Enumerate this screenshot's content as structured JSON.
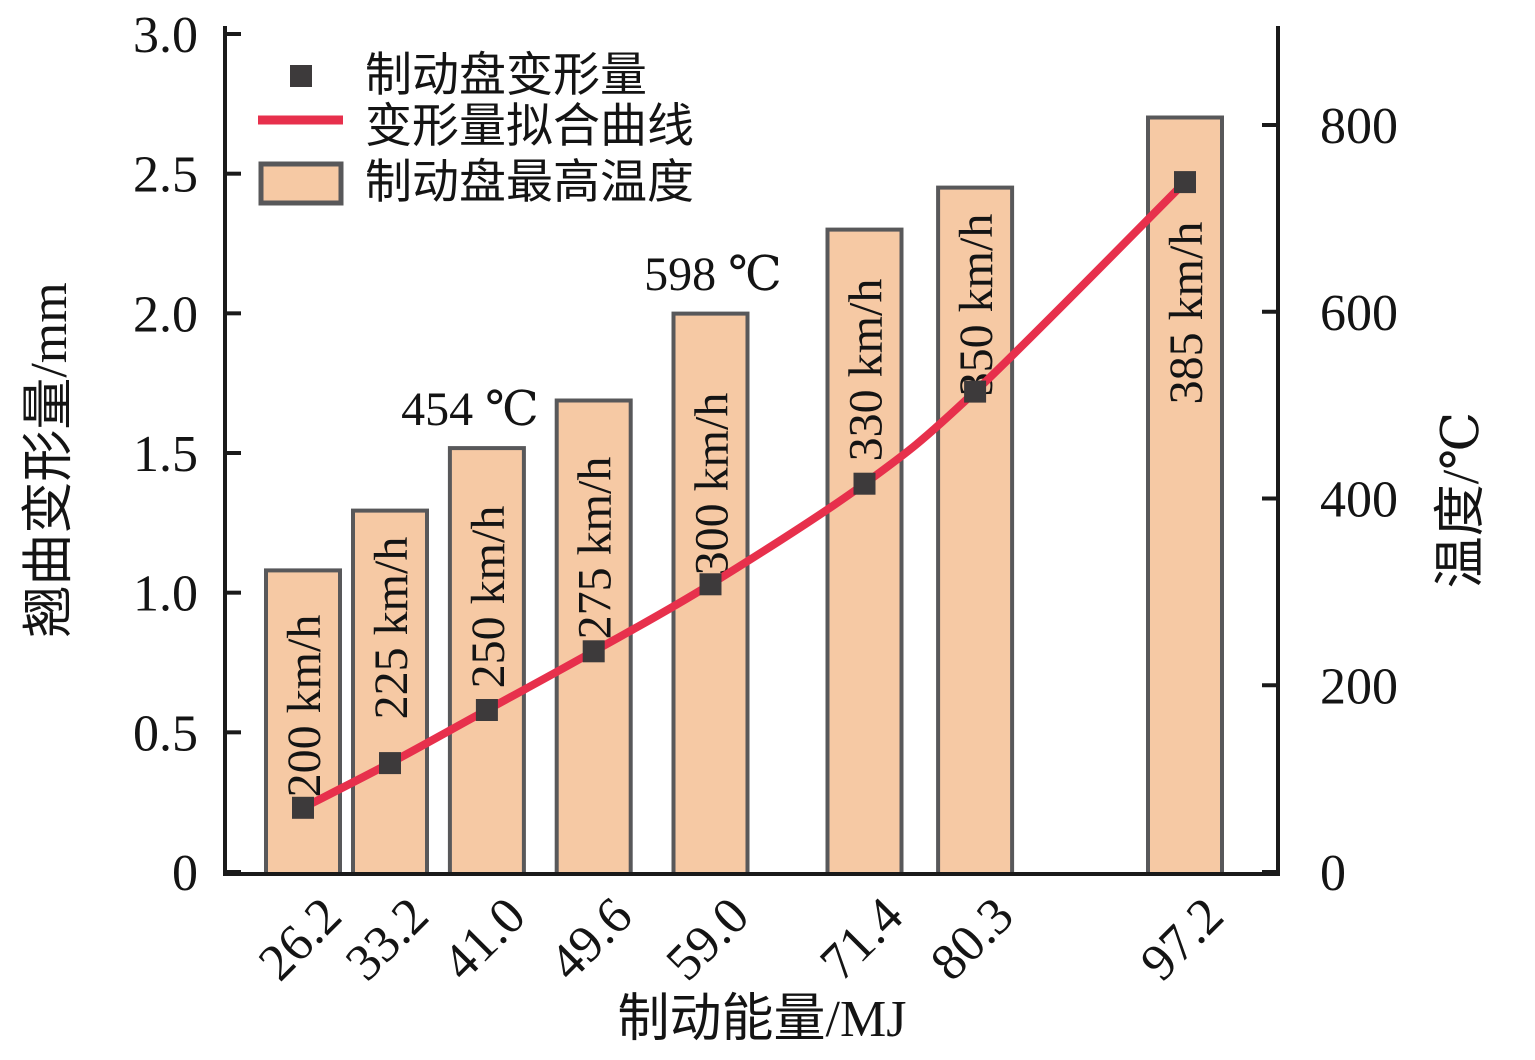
{
  "figure": {
    "xlabel": "制动能量/MJ",
    "left_axis_label": "翘曲变形量/mm",
    "right_axis_label": "温度/℃"
  },
  "legend": {
    "position": "top-left",
    "items": [
      {
        "swatch": "square-marker",
        "label": "制动盘变形量"
      },
      {
        "swatch": "red-line",
        "label": "变形量拟合曲线"
      },
      {
        "swatch": "filled-bar",
        "label": "制动盘最高温度"
      }
    ]
  },
  "colors": {
    "bar_fill": "#f6c9a4",
    "bar_border": "#58585a",
    "fit_line": "#e7304c",
    "marker": "#3d3a3b",
    "axis": "#1a1a1a",
    "text": "#141414"
  },
  "chart_data": {
    "type": "combo",
    "title": "",
    "xlabel": "制动能量/MJ",
    "x": [
      26.2,
      33.2,
      41.0,
      49.6,
      59.0,
      71.4,
      80.3,
      97.2
    ],
    "x_tick_labels": [
      "26.2",
      "33.2",
      "41.0",
      "49.6",
      "59.0",
      "71.4",
      "80.3",
      "97.2"
    ],
    "left_axis": {
      "label": "翘曲变形量/mm",
      "ticks": [
        0,
        0.5,
        1.0,
        1.5,
        2.0,
        2.5,
        3.0
      ],
      "tick_labels": [
        "0",
        "0.5",
        "1.0",
        "1.5",
        "2.0",
        "2.5",
        "3.0"
      ],
      "range": [
        0,
        3.0
      ]
    },
    "right_axis": {
      "label": "温度/℃",
      "ticks": [
        0,
        200,
        400,
        600,
        800
      ],
      "tick_labels": [
        "0",
        "200",
        "400",
        "600",
        "800"
      ],
      "range": [
        0,
        900
      ]
    },
    "series": [
      {
        "name": "制动盘变形量",
        "type": "scatter",
        "axis": "left",
        "unit": "mm",
        "marker": "square",
        "color": "#3d3a3b",
        "values": [
          0.23,
          0.39,
          0.58,
          0.79,
          1.03,
          1.39,
          1.72,
          2.47
        ]
      },
      {
        "name": "变形量拟合曲线",
        "type": "line",
        "axis": "left",
        "unit": "mm",
        "color": "#e7304c",
        "values": [
          0.23,
          0.39,
          0.58,
          0.79,
          1.03,
          1.39,
          1.72,
          2.47
        ]
      },
      {
        "name": "制动盘最高温度",
        "type": "bar",
        "axis": "right",
        "unit": "℃",
        "fill": "#f6c9a4",
        "border": "#58585a",
        "values": [
          323,
          387,
          454,
          505,
          598,
          688,
          733,
          808
        ],
        "bar_labels": [
          "200 km/h",
          "225 km/h",
          "250 km/h",
          "275 km/h",
          "300 km/h",
          "330 km/h",
          "350 km/h",
          "385 km/h"
        ]
      }
    ],
    "annotations": [
      {
        "text": "454 ℃",
        "x": 41.0,
        "series": "制动盘最高温度"
      },
      {
        "text": "598 ℃",
        "x": 59.0,
        "series": "制动盘最高温度"
      }
    ],
    "legend_position": "top-left",
    "grid": false
  }
}
